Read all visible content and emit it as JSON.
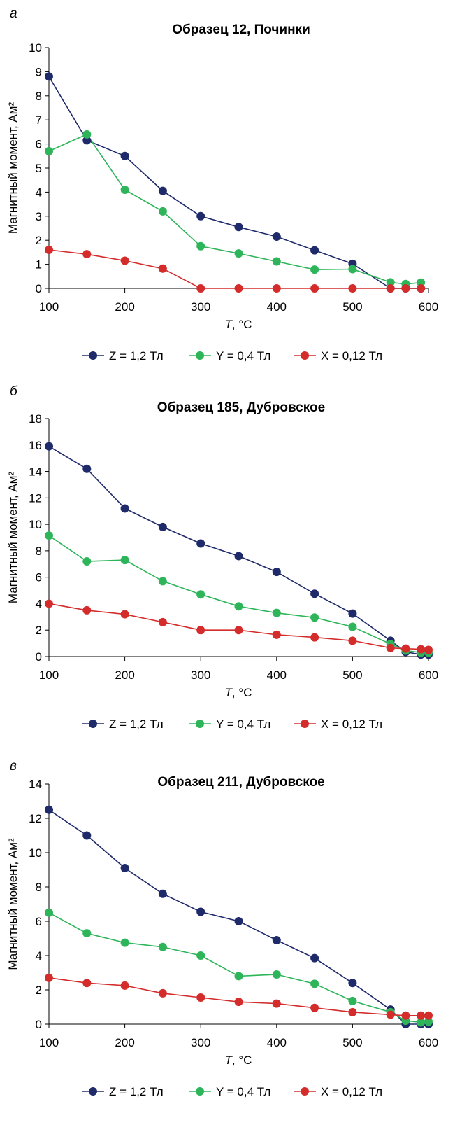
{
  "chart_data": [
    {
      "type": "line",
      "panel_letter": "а",
      "title": "Образец 12, Починки",
      "xlabel_italic": "T",
      "xlabel_rest": ", °C",
      "ylabel": "Магнитный момент, Ам²",
      "xlim": [
        100,
        600
      ],
      "ylim": [
        0,
        10
      ],
      "xticks": [
        "100",
        "200",
        "300",
        "400",
        "500",
        "600"
      ],
      "yticks": [
        "0",
        "1",
        "2",
        "3",
        "4",
        "5",
        "6",
        "7",
        "8",
        "9",
        "10"
      ],
      "grid": false,
      "legend_position": "bottom",
      "series": [
        {
          "name": "Z = 1,2 Тл",
          "color": "#1f2a6b",
          "points": [
            [
              100,
              8.8
            ],
            [
              150,
              6.15
            ],
            [
              200,
              5.5
            ],
            [
              250,
              4.05
            ],
            [
              300,
              3.0
            ],
            [
              350,
              2.55
            ],
            [
              400,
              2.15
            ],
            [
              450,
              1.58
            ],
            [
              500,
              1.02
            ],
            [
              550,
              0.0
            ],
            [
              570,
              0.0
            ],
            [
              590,
              0.0
            ]
          ]
        },
        {
          "name": "Y = 0,4 Тл",
          "color": "#2eb55a",
          "points": [
            [
              100,
              5.7
            ],
            [
              150,
              6.4
            ],
            [
              200,
              4.1
            ],
            [
              250,
              3.2
            ],
            [
              300,
              1.75
            ],
            [
              350,
              1.45
            ],
            [
              400,
              1.12
            ],
            [
              450,
              0.78
            ],
            [
              500,
              0.8
            ],
            [
              550,
              0.25
            ],
            [
              570,
              0.18
            ],
            [
              590,
              0.24
            ]
          ]
        },
        {
          "name": "X = 0,12 Тл",
          "color": "#d42b2b",
          "points": [
            [
              100,
              1.6
            ],
            [
              150,
              1.42
            ],
            [
              200,
              1.15
            ],
            [
              250,
              0.82
            ],
            [
              300,
              0.0
            ],
            [
              350,
              0.0
            ],
            [
              400,
              0.0
            ],
            [
              450,
              0.0
            ],
            [
              500,
              0.0
            ],
            [
              550,
              0.0
            ],
            [
              570,
              0.0
            ],
            [
              590,
              0.0
            ]
          ]
        }
      ]
    },
    {
      "type": "line",
      "panel_letter": "б",
      "title": "Образец 185, Дубровское",
      "xlabel_italic": "T",
      "xlabel_rest": ", °C",
      "ylabel": "Магнитный момент, Ам²",
      "xlim": [
        100,
        600
      ],
      "ylim": [
        0,
        18
      ],
      "xticks": [
        "100",
        "200",
        "300",
        "400",
        "500",
        "600"
      ],
      "yticks": [
        "0",
        "2",
        "4",
        "6",
        "8",
        "10",
        "12",
        "14",
        "16",
        "18"
      ],
      "grid": false,
      "legend_position": "bottom",
      "series": [
        {
          "name": "Z = 1,2 Тл",
          "color": "#1f2a6b",
          "points": [
            [
              100,
              15.9
            ],
            [
              150,
              14.2
            ],
            [
              200,
              11.2
            ],
            [
              250,
              9.8
            ],
            [
              300,
              8.55
            ],
            [
              350,
              7.6
            ],
            [
              400,
              6.4
            ],
            [
              450,
              4.75
            ],
            [
              500,
              3.25
            ],
            [
              550,
              1.2
            ],
            [
              570,
              0.35
            ],
            [
              590,
              0.15
            ],
            [
              600,
              0.15
            ]
          ]
        },
        {
          "name": "Y = 0,4 Тл",
          "color": "#2eb55a",
          "points": [
            [
              100,
              9.15
            ],
            [
              150,
              7.2
            ],
            [
              200,
              7.3
            ],
            [
              250,
              5.7
            ],
            [
              300,
              4.7
            ],
            [
              350,
              3.8
            ],
            [
              400,
              3.3
            ],
            [
              450,
              2.95
            ],
            [
              500,
              2.25
            ],
            [
              550,
              0.95
            ],
            [
              570,
              0.45
            ],
            [
              590,
              0.3
            ],
            [
              600,
              0.3
            ]
          ]
        },
        {
          "name": "X = 0,12 Тл",
          "color": "#d42b2b",
          "points": [
            [
              100,
              4.0
            ],
            [
              150,
              3.5
            ],
            [
              200,
              3.2
            ],
            [
              250,
              2.6
            ],
            [
              300,
              2.0
            ],
            [
              350,
              2.0
            ],
            [
              400,
              1.65
            ],
            [
              450,
              1.45
            ],
            [
              500,
              1.2
            ],
            [
              550,
              0.65
            ],
            [
              570,
              0.6
            ],
            [
              590,
              0.55
            ],
            [
              600,
              0.5
            ]
          ]
        }
      ]
    },
    {
      "type": "line",
      "panel_letter": "в",
      "title": "Образец 211, Дубровское",
      "xlabel_italic": "T",
      "xlabel_rest": ", °C",
      "ylabel": "Магнитный момент, Ам²",
      "xlim": [
        100,
        600
      ],
      "ylim": [
        0,
        14
      ],
      "xticks": [
        "100",
        "200",
        "300",
        "400",
        "500",
        "600"
      ],
      "yticks": [
        "0",
        "2",
        "4",
        "6",
        "8",
        "10",
        "12",
        "14"
      ],
      "grid": false,
      "legend_position": "bottom",
      "series": [
        {
          "name": "Z = 1,2 Тл",
          "color": "#1f2a6b",
          "points": [
            [
              100,
              12.5
            ],
            [
              150,
              11.0
            ],
            [
              200,
              9.1
            ],
            [
              250,
              7.6
            ],
            [
              300,
              6.55
            ],
            [
              350,
              6.0
            ],
            [
              400,
              4.9
            ],
            [
              450,
              3.85
            ],
            [
              500,
              2.4
            ],
            [
              550,
              0.85
            ],
            [
              570,
              0.0
            ],
            [
              590,
              0.0
            ],
            [
              600,
              0.0
            ]
          ]
        },
        {
          "name": "Y = 0,4 Тл",
          "color": "#2eb55a",
          "points": [
            [
              100,
              6.5
            ],
            [
              150,
              5.3
            ],
            [
              200,
              4.75
            ],
            [
              250,
              4.5
            ],
            [
              300,
              4.0
            ],
            [
              350,
              2.8
            ],
            [
              400,
              2.9
            ],
            [
              450,
              2.35
            ],
            [
              500,
              1.35
            ],
            [
              550,
              0.7
            ],
            [
              570,
              0.2
            ],
            [
              590,
              0.1
            ],
            [
              600,
              0.15
            ]
          ]
        },
        {
          "name": "X = 0,12 Тл",
          "color": "#d42b2b",
          "points": [
            [
              100,
              2.7
            ],
            [
              150,
              2.4
            ],
            [
              200,
              2.25
            ],
            [
              250,
              1.8
            ],
            [
              300,
              1.55
            ],
            [
              350,
              1.3
            ],
            [
              400,
              1.2
            ],
            [
              450,
              0.95
            ],
            [
              500,
              0.7
            ],
            [
              550,
              0.55
            ],
            [
              570,
              0.5
            ],
            [
              590,
              0.5
            ],
            [
              600,
              0.5
            ]
          ]
        }
      ]
    }
  ]
}
